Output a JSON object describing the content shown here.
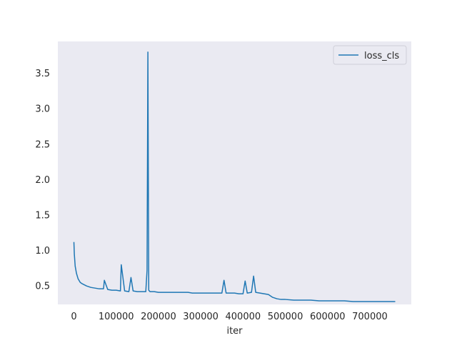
{
  "chart_data": {
    "type": "line",
    "title": "",
    "xlabel": "iter",
    "ylabel": "",
    "xlim": [
      -38000,
      798000
    ],
    "ylim": [
      0.24,
      3.95
    ],
    "xticks": [
      0,
      100000,
      200000,
      300000,
      400000,
      500000,
      600000,
      700000
    ],
    "yticks": [
      0.5,
      1.0,
      1.5,
      2.0,
      2.5,
      3.0,
      3.5
    ],
    "grid": false,
    "legend_position": "top-right",
    "colors": {
      "plot_background": "#eaeaf2",
      "series": "#1f77b4"
    },
    "series": [
      {
        "name": "loss_cls",
        "x": [
          0,
          1000,
          3000,
          6000,
          10000,
          15000,
          20000,
          30000,
          40000,
          50000,
          60000,
          70000,
          72000,
          80000,
          90000,
          100000,
          110000,
          112000,
          120000,
          130000,
          135000,
          140000,
          150000,
          160000,
          170000,
          173000,
          175000,
          177000,
          180000,
          190000,
          200000,
          210000,
          220000,
          230000,
          240000,
          250000,
          260000,
          270000,
          280000,
          290000,
          300000,
          310000,
          320000,
          330000,
          340000,
          350000,
          355000,
          360000,
          370000,
          380000,
          390000,
          400000,
          405000,
          410000,
          420000,
          425000,
          430000,
          440000,
          450000,
          460000,
          470000,
          480000,
          490000,
          500000,
          520000,
          540000,
          560000,
          580000,
          600000,
          620000,
          640000,
          660000,
          680000,
          700000,
          720000,
          740000,
          760000
        ],
        "values": [
          1.12,
          0.95,
          0.78,
          0.68,
          0.6,
          0.55,
          0.53,
          0.5,
          0.48,
          0.47,
          0.46,
          0.46,
          0.58,
          0.45,
          0.44,
          0.44,
          0.43,
          0.8,
          0.43,
          0.42,
          0.62,
          0.43,
          0.42,
          0.42,
          0.42,
          0.72,
          3.8,
          0.44,
          0.42,
          0.42,
          0.41,
          0.41,
          0.41,
          0.41,
          0.41,
          0.41,
          0.41,
          0.41,
          0.4,
          0.4,
          0.4,
          0.4,
          0.4,
          0.4,
          0.4,
          0.4,
          0.58,
          0.4,
          0.4,
          0.4,
          0.39,
          0.39,
          0.57,
          0.4,
          0.41,
          0.64,
          0.41,
          0.4,
          0.39,
          0.38,
          0.34,
          0.32,
          0.31,
          0.31,
          0.3,
          0.3,
          0.3,
          0.29,
          0.29,
          0.29,
          0.29,
          0.28,
          0.28,
          0.28,
          0.28,
          0.28,
          0.28
        ]
      }
    ]
  }
}
